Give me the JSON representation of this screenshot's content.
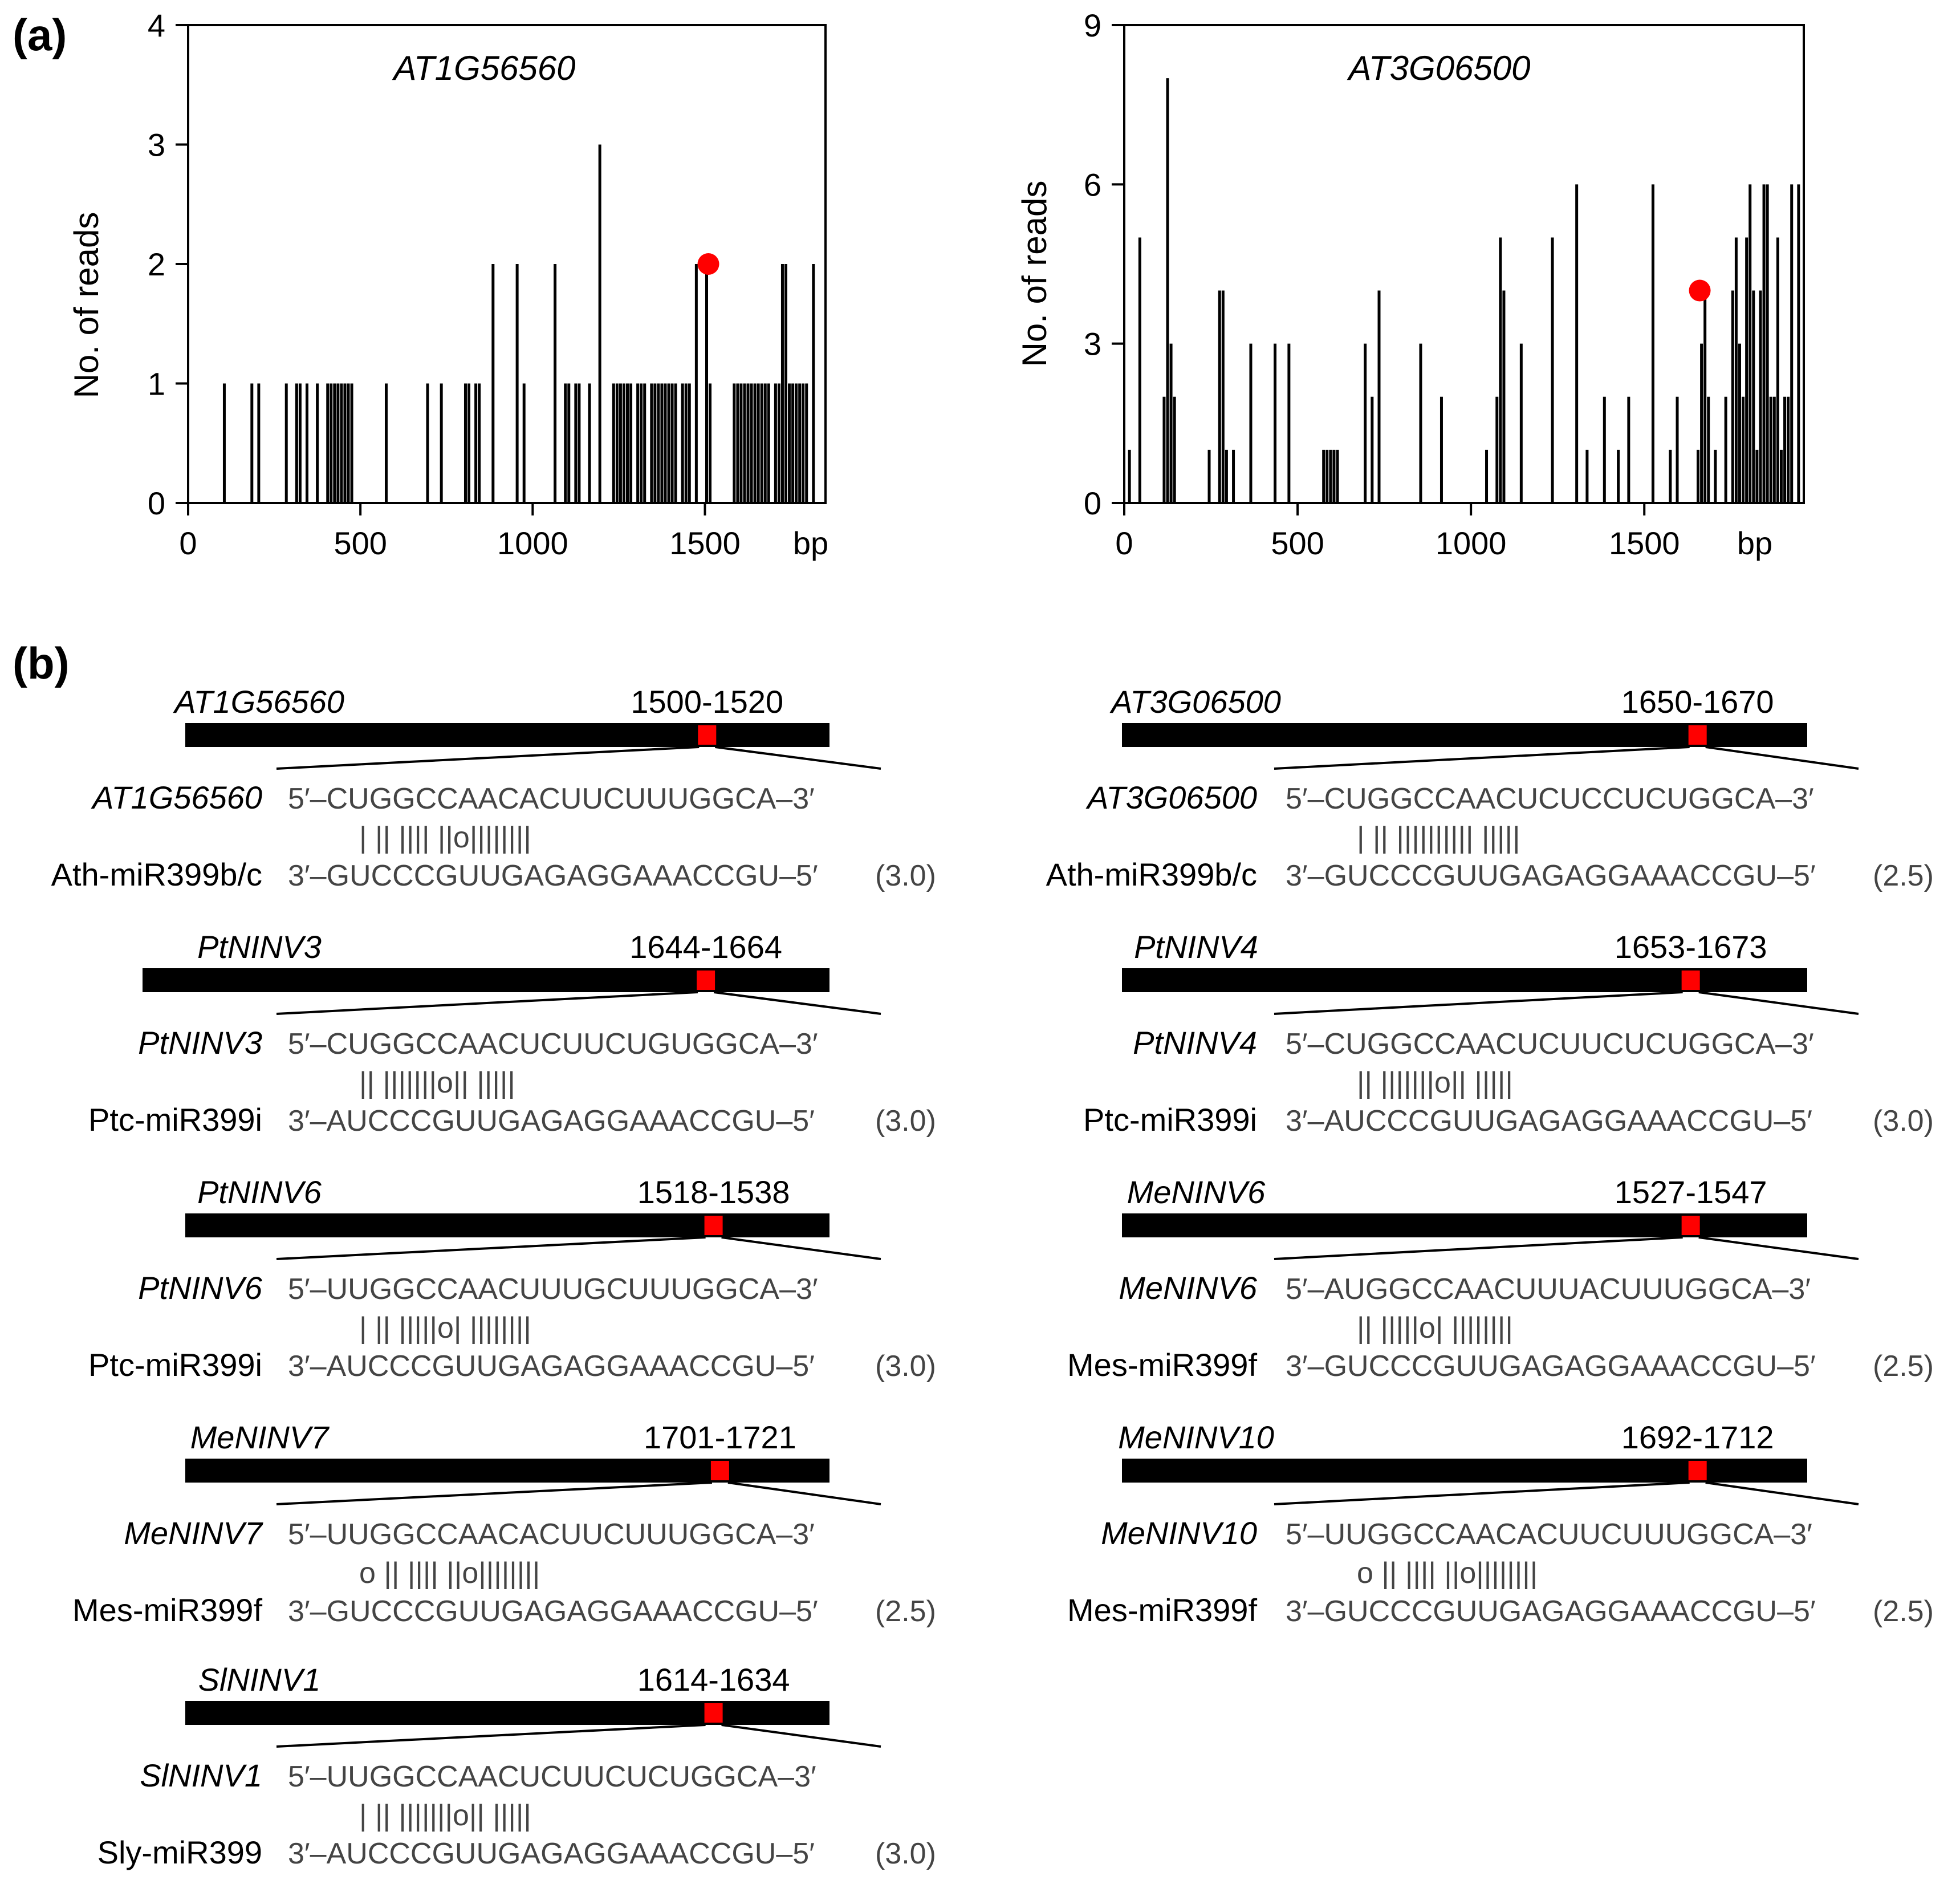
{
  "panel_a": {
    "label": "(a)",
    "ylabel": "No. of reads",
    "x_unit": "bp"
  },
  "panel_b": {
    "label": "(b)",
    "entries": [
      {
        "gene": "AT1G56560",
        "range": "1500-1520",
        "target_seq": "5′–CUGGCCAACACUUCUUUGGCA–3′",
        "pairing": "| || |||| ||o||||||||",
        "mirna": "Ath-miR399b/c",
        "mirna_seq": "3′–GUCCCGUUGAGAGGAAACCGU–5′",
        "score": "(3.0)",
        "site_fraction": 0.81
      },
      {
        "gene": "AT3G06500",
        "range": "1650-1670",
        "target_seq": "5′–CUGGCCAACUCUCCUCUGGCA–3′",
        "pairing": "| || |||||||||| |||||",
        "mirna": "Ath-miR399b/c",
        "mirna_seq": "3′–GUCCCGUUGAGAGGAAACCGU–5′",
        "score": "(2.5)",
        "site_fraction": 0.84
      },
      {
        "gene": "PtNINV3",
        "range": "1644-1664",
        "target_seq": "5′–CUGGCCAACUCUUCUGUGGCA–3′",
        "pairing": "|| |||||||o|| |||||",
        "mirna": "Ptc-miR399i",
        "mirna_seq": "3′–AUCCCGUUGAGAGGAAACCGU–5′",
        "score": "(3.0)",
        "site_fraction": 0.82
      },
      {
        "gene": "PtNINV4",
        "range": "1653-1673",
        "target_seq": "5′–CUGGCCAACUCUUCUCUGGCA–3′",
        "pairing": "|| |||||||o|| |||||",
        "mirna": "Ptc-miR399i",
        "mirna_seq": "3′–AUCCCGUUGAGAGGAAACCGU–5′",
        "score": "(3.0)",
        "site_fraction": 0.83
      },
      {
        "gene": "PtNINV6",
        "range": "1518-1538",
        "target_seq": "5′–UUGGCCAACUUUGCUUUGGCA–3′",
        "pairing": "| || |||||o| ||||||||",
        "mirna": "Ptc-miR399i",
        "mirna_seq": "3′–AUCCCGUUGAGAGGAAACCGU–5′",
        "score": "(3.0)",
        "site_fraction": 0.82
      },
      {
        "gene": "MeNINV6",
        "range": "1527-1547",
        "target_seq": "5′–AUGGCCAACUUUACUUUGGCA–3′",
        "pairing": "|| |||||o| ||||||||",
        "mirna": "Mes-miR399f",
        "mirna_seq": "3′–GUCCCGUUGAGAGGAAACCGU–5′",
        "score": "(2.5)",
        "site_fraction": 0.83
      },
      {
        "gene": "MeNINV7",
        "range": "1701-1721",
        "target_seq": "5′–UUGGCCAACACUUCUUUGGCA–3′",
        "pairing": "o || |||| ||o||||||||",
        "mirna": "Mes-miR399f",
        "mirna_seq": "3′–GUCCCGUUGAGAGGAAACCGU–5′",
        "score": "(2.5)",
        "site_fraction": 0.83
      },
      {
        "gene": "MeNINV10",
        "range": "1692-1712",
        "target_seq": "5′–UUGGCCAACACUUCUUUGGCA–3′",
        "pairing": "o || |||| ||o||||||||",
        "mirna": "Mes-miR399f",
        "mirna_seq": "3′–GUCCCGUUGAGAGGAAACCGU–5′",
        "score": "(2.5)",
        "site_fraction": 0.84
      },
      {
        "gene": "SlNINV1",
        "range": "1614-1634",
        "target_seq": "5′–UUGGCCAACUCUUCUCUGGCA–3′",
        "pairing": "| || |||||||o|| |||||",
        "mirna": "Sly-miR399",
        "mirna_seq": "3′–AUCCCGUUGAGAGGAAACCGU–5′",
        "score": "(3.0)",
        "site_fraction": 0.82
      }
    ]
  },
  "chart_data": [
    {
      "type": "bar",
      "title": "AT1G56560",
      "xlabel": "bp",
      "ylabel": "No. of reads",
      "xlim": [
        0,
        1850
      ],
      "ylim": [
        0,
        4
      ],
      "xticks": [
        0,
        500,
        1000,
        1500
      ],
      "yticks": [
        0,
        1,
        2,
        3,
        4
      ],
      "marker_color": "#ff0000",
      "cleavage_site": {
        "x": 1510,
        "y": 2
      },
      "series": [
        {
          "x": [
            105,
            185,
            205,
            285,
            315,
            325,
            345,
            375,
            405,
            415,
            425,
            435,
            445,
            455,
            465,
            475,
            575,
            695,
            735,
            805,
            815,
            835,
            845,
            885,
            955,
            975,
            1065,
            1095,
            1105,
            1125,
            1135,
            1165,
            1195,
            1235,
            1245,
            1255,
            1265,
            1275,
            1285,
            1305,
            1315,
            1325,
            1345,
            1355,
            1365,
            1375,
            1385,
            1395,
            1405,
            1415,
            1435,
            1445,
            1455,
            1475,
            1505,
            1515,
            1585,
            1595,
            1605,
            1615,
            1625,
            1635,
            1645,
            1655,
            1665,
            1675,
            1685,
            1705,
            1715,
            1725,
            1735,
            1745,
            1755,
            1765,
            1775,
            1785,
            1795,
            1815
          ],
          "values": [
            1,
            1,
            1,
            1,
            1,
            1,
            1,
            1,
            1,
            1,
            1,
            1,
            1,
            1,
            1,
            1,
            1,
            1,
            1,
            1,
            1,
            1,
            1,
            2,
            2,
            1,
            2,
            1,
            1,
            1,
            1,
            1,
            3,
            1,
            1,
            1,
            1,
            1,
            1,
            1,
            1,
            1,
            1,
            1,
            1,
            1,
            1,
            1,
            1,
            1,
            1,
            1,
            1,
            2,
            2,
            1,
            1,
            1,
            1,
            1,
            1,
            1,
            1,
            1,
            1,
            1,
            1,
            1,
            1,
            2,
            2,
            1,
            1,
            1,
            1,
            1,
            1,
            2
          ]
        }
      ]
    },
    {
      "type": "bar",
      "title": "AT3G06500",
      "xlabel": "bp",
      "ylabel": "No. of reads",
      "xlim": [
        0,
        1960
      ],
      "ylim": [
        0,
        9
      ],
      "xticks": [
        0,
        500,
        1000,
        1500
      ],
      "yticks": [
        0,
        3,
        6,
        9
      ],
      "marker_color": "#ff0000",
      "cleavage_site": {
        "x": 1660,
        "y": 4
      },
      "series": [
        {
          "x": [
            15,
            45,
            115,
            125,
            135,
            145,
            245,
            275,
            285,
            295,
            315,
            365,
            435,
            475,
            575,
            585,
            595,
            605,
            615,
            695,
            715,
            735,
            855,
            915,
            1045,
            1075,
            1085,
            1095,
            1145,
            1235,
            1305,
            1335,
            1385,
            1425,
            1455,
            1525,
            1575,
            1595,
            1655,
            1665,
            1675,
            1685,
            1705,
            1735,
            1755,
            1765,
            1775,
            1785,
            1795,
            1805,
            1815,
            1825,
            1835,
            1845,
            1855,
            1865,
            1875,
            1885,
            1895,
            1905,
            1915,
            1925,
            1945
          ],
          "values": [
            1,
            5,
            2,
            8,
            3,
            2,
            1,
            4,
            4,
            1,
            1,
            3,
            3,
            3,
            1,
            1,
            1,
            1,
            1,
            3,
            2,
            4,
            3,
            2,
            1,
            2,
            5,
            4,
            3,
            5,
            6,
            1,
            2,
            1,
            2,
            6,
            1,
            2,
            1,
            3,
            4,
            2,
            1,
            2,
            4,
            5,
            3,
            2,
            5,
            6,
            4,
            1,
            4,
            6,
            6,
            2,
            2,
            5,
            1,
            2,
            2,
            6,
            6
          ]
        }
      ]
    }
  ]
}
